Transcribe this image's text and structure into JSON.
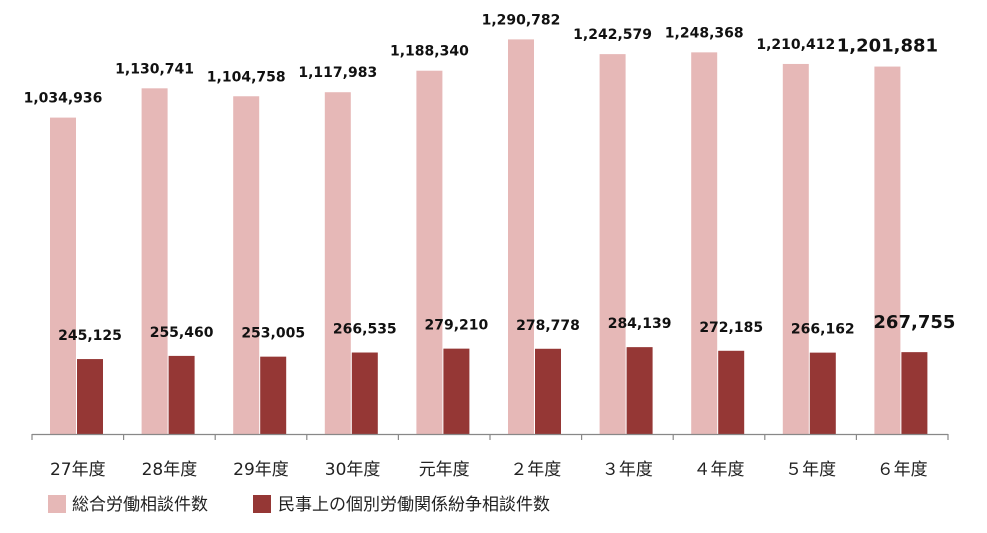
{
  "chart_data": {
    "type": "bar",
    "title": "",
    "xlabel": "",
    "ylabel": "",
    "ylim": [
      0,
      1400000
    ],
    "grid": false,
    "legend_position": "bottom-left",
    "categories": [
      "27年度",
      "28年度",
      "29年度",
      "30年度",
      "元年度",
      "２年度",
      "３年度",
      "４年度",
      "５年度",
      "６年度"
    ],
    "series": [
      {
        "name": "総合労働相談件数",
        "color": "#e6b8b7",
        "values": [
          1034936,
          1130741,
          1104758,
          1117983,
          1188340,
          1290782,
          1242579,
          1248368,
          1210412,
          1201881
        ],
        "labels": [
          "1,034,936",
          "1,130,741",
          "1,104,758",
          "1,117,983",
          "1,188,340",
          "1,290,782",
          "1,242,579",
          "1,248,368",
          "1,210,412",
          "1,201,881"
        ]
      },
      {
        "name": "民事上の個別労働関係紛争相談件数",
        "color": "#953735",
        "values": [
          245125,
          255460,
          253005,
          266535,
          279210,
          278778,
          284139,
          272185,
          266162,
          267755
        ],
        "labels": [
          "245,125",
          "255,460",
          "253,005",
          "266,535",
          "279,210",
          "278,778",
          "284,139",
          "272,185",
          "266,162",
          "267,755"
        ]
      }
    ]
  }
}
